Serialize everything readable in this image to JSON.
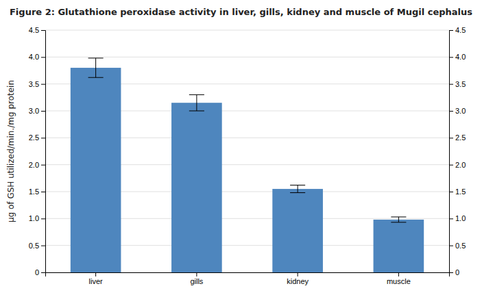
{
  "chart_data": {
    "type": "bar",
    "title": "Figure 2: Glutathione peroxidase activity in liver, gills, kidney and muscle of Mugil cephalus",
    "y_label": "µg of GSH utilized/min./mg protein",
    "categories": [
      "liver",
      "gills",
      "kidney",
      "muscle"
    ],
    "values": [
      3.8,
      3.15,
      1.55,
      0.98
    ],
    "errors": [
      0.18,
      0.15,
      0.07,
      0.05
    ],
    "color": "#4e86be",
    "ylim": [
      0,
      4.5
    ],
    "yticks": [
      0,
      0.5,
      {
        "value": 1.0,
        "label": "1.0"
      },
      1.5,
      {
        "value": 2.0,
        "label": "2.0"
      },
      2.5,
      {
        "value": 3.0,
        "label": "3.0"
      },
      3.5,
      {
        "value": 4.0,
        "label": "4.0"
      },
      4.5
    ],
    "y2lim": [
      0,
      4.5
    ],
    "y2ticks": [
      0,
      0.5,
      {
        "value": 1.0,
        "label": "1.0"
      },
      1.5,
      {
        "value": 2.0,
        "label": "2.0"
      },
      2.5,
      {
        "value": 3.0,
        "label": "3.0"
      },
      3.5,
      {
        "value": 4.0,
        "label": "4.0"
      },
      4.5
    ],
    "grid": true
  }
}
